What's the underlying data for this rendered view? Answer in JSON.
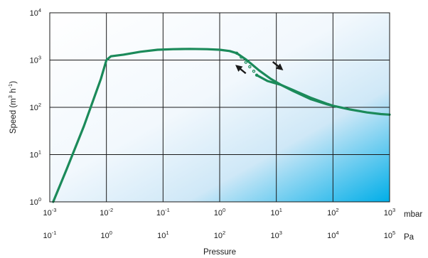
{
  "chart_data": {
    "type": "line",
    "title": "",
    "xlabel": "Pressure",
    "ylabel_parts": {
      "main": "Speed (m",
      "exp": "3",
      "mid": " h",
      "exp2": "-1",
      "end": ")"
    },
    "x_scale": "log",
    "y_scale": "log",
    "xlim_mbar": [
      0.001,
      1000
    ],
    "ylim": [
      1,
      10000
    ],
    "x_unit_primary": "mbar",
    "x_unit_secondary": "Pa",
    "x_ticks_mbar": [
      {
        "base": "10",
        "exp": "-3"
      },
      {
        "base": "10",
        "exp": "-2"
      },
      {
        "base": "10",
        "exp": "-1"
      },
      {
        "base": "10",
        "exp": "0"
      },
      {
        "base": "10",
        "exp": "1"
      },
      {
        "base": "10",
        "exp": "2"
      },
      {
        "base": "10",
        "exp": "3"
      }
    ],
    "x_ticks_pa": [
      {
        "base": "10",
        "exp": "-1"
      },
      {
        "base": "10",
        "exp": "0"
      },
      {
        "base": "10",
        "exp": "1"
      },
      {
        "base": "10",
        "exp": "2"
      },
      {
        "base": "10",
        "exp": "3"
      },
      {
        "base": "10",
        "exp": "4"
      },
      {
        "base": "10",
        "exp": "5"
      }
    ],
    "y_ticks": [
      {
        "base": "10",
        "exp": "0"
      },
      {
        "base": "10",
        "exp": "1"
      },
      {
        "base": "10",
        "exp": "2"
      },
      {
        "base": "10",
        "exp": "3"
      },
      {
        "base": "10",
        "exp": "4"
      }
    ],
    "grid": true,
    "series": [
      {
        "role": "main_curve",
        "x_mbar": [
          0.00115,
          0.002,
          0.004,
          0.008,
          0.01,
          0.012,
          0.02,
          0.04,
          0.08,
          0.15,
          0.3,
          0.6,
          1.0,
          1.5,
          2.0
        ],
        "y": [
          1,
          5,
          40,
          400,
          1000,
          1200,
          1300,
          1500,
          1650,
          1700,
          1720,
          1700,
          1650,
          1550,
          1400
        ]
      },
      {
        "role": "upper_branch",
        "x_mbar": [
          2.0,
          3,
          5,
          8,
          12,
          20,
          40,
          80,
          100
        ],
        "y": [
          1400,
          1000,
          600,
          400,
          300,
          220,
          150,
          115,
          108
        ]
      },
      {
        "role": "lower_branch",
        "x_mbar": [
          4.5,
          7,
          12,
          20,
          40,
          80,
          100,
          200,
          400,
          700,
          1000
        ],
        "y": [
          480,
          360,
          300,
          230,
          160,
          118,
          108,
          90,
          78,
          72,
          70
        ]
      },
      {
        "role": "dotted_transition",
        "x_mbar": [
          2.0,
          2.4,
          2.9,
          3.4,
          4.0,
          4.5
        ],
        "y": [
          1400,
          1150,
          900,
          720,
          580,
          480
        ]
      }
    ],
    "annotations": [
      {
        "kind": "arrow",
        "direction": "up-left",
        "x_mbar": 2.5,
        "y": 600
      },
      {
        "kind": "arrow",
        "direction": "down-right",
        "x_mbar": 10,
        "y": 800
      }
    ],
    "colors": {
      "curve": "#1b8a5a",
      "grid": "#1a1a1a",
      "arrow": "#1a1a1a",
      "gradient_light": "#ffffff",
      "gradient_mid": "#e8f3fb",
      "gradient_dark": "#00aee8"
    }
  }
}
